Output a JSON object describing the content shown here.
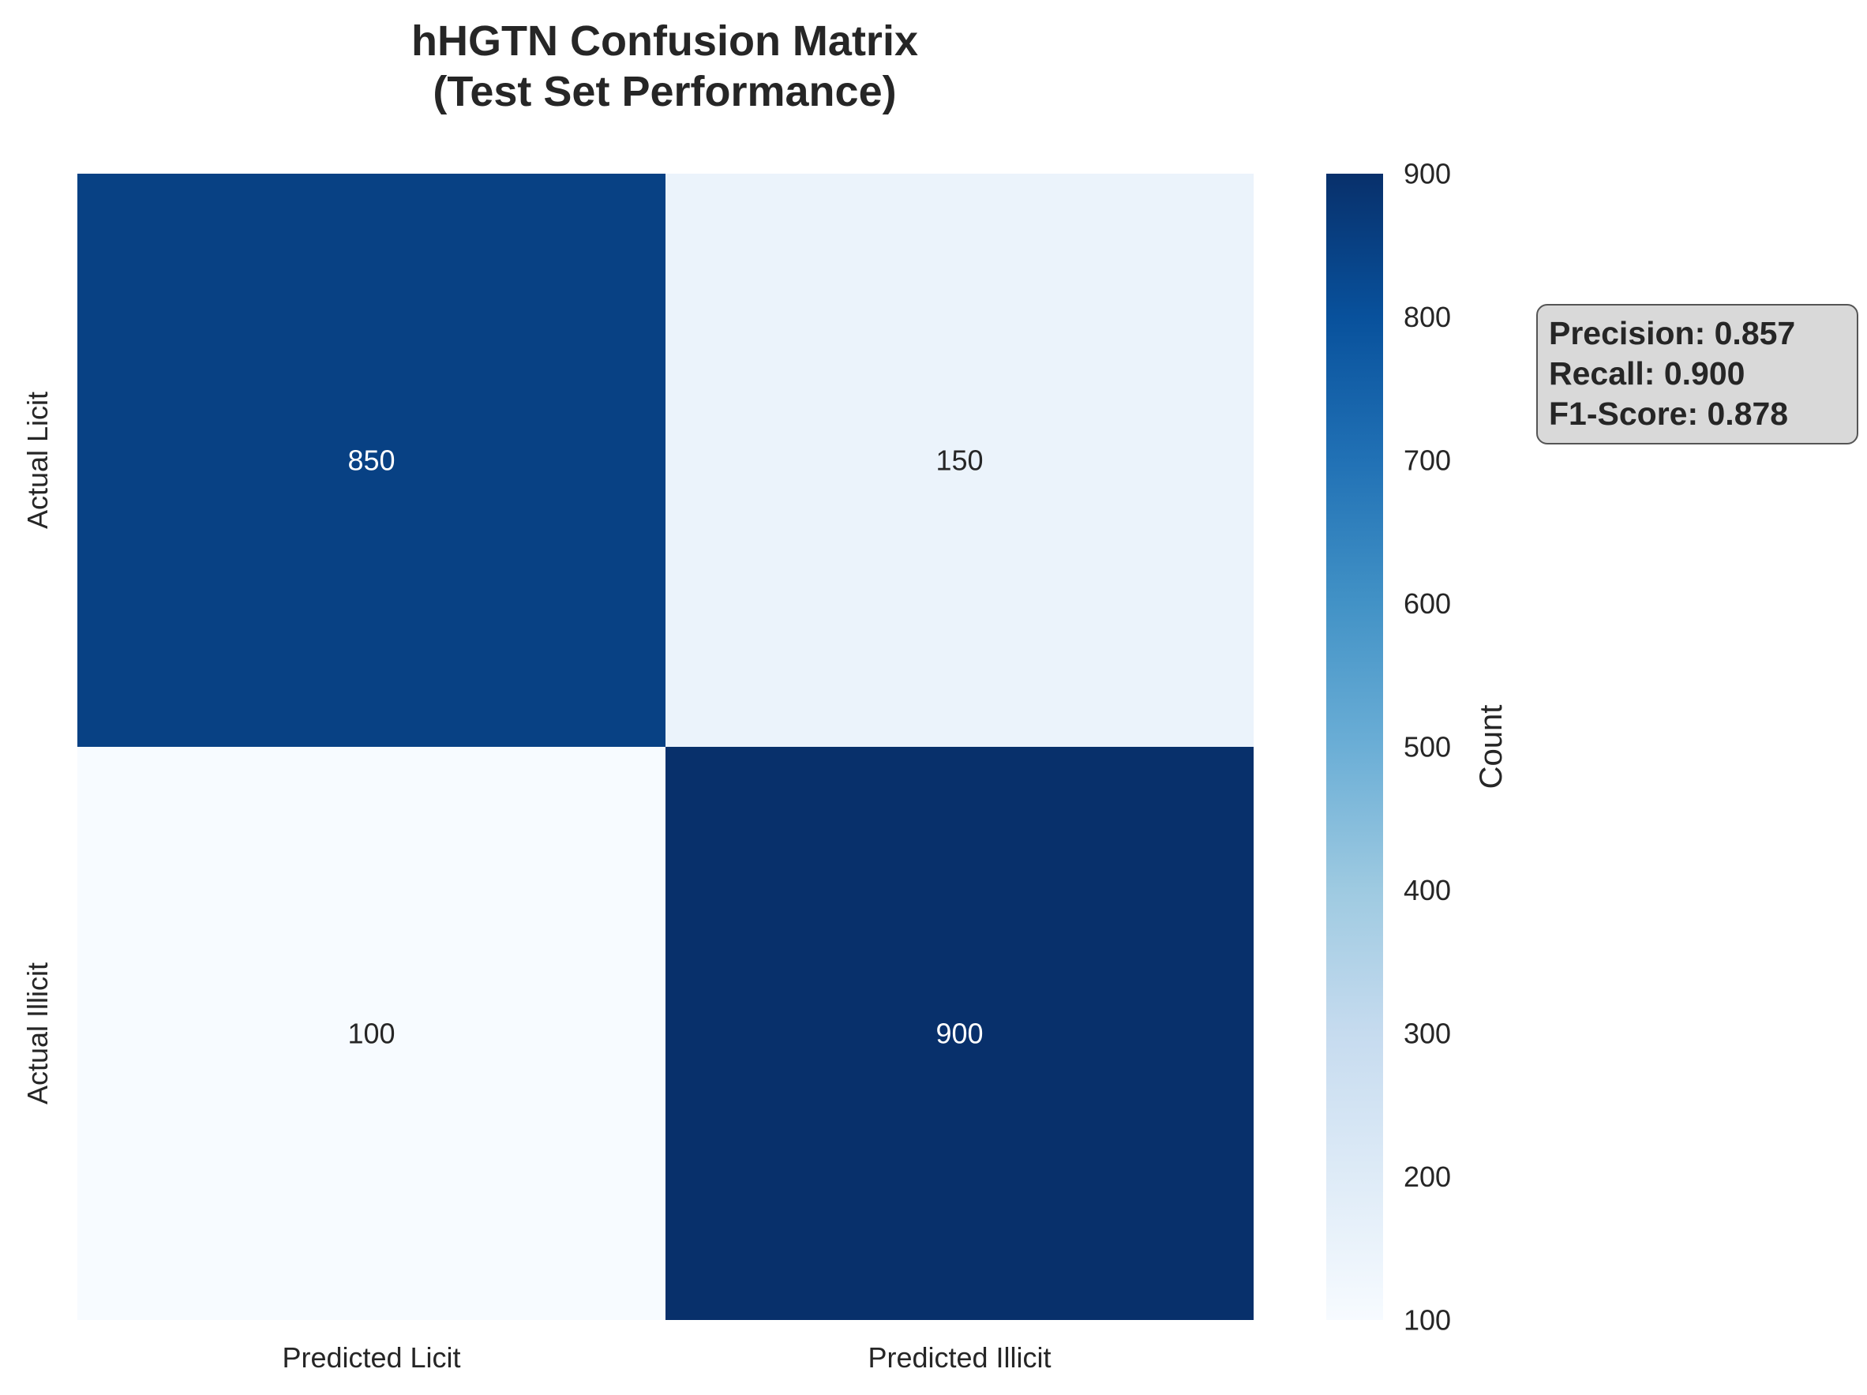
{
  "chart_data": {
    "type": "heatmap",
    "title": [
      "hHGTN Confusion Matrix",
      "(Test Set Performance)"
    ],
    "x_categories": [
      "Predicted Licit",
      "Predicted Illicit"
    ],
    "y_categories": [
      "Actual Licit",
      "Actual Illicit"
    ],
    "values": [
      [
        850,
        150
      ],
      [
        100,
        900
      ]
    ],
    "colorbar": {
      "label": "Count",
      "range": [
        100,
        900
      ],
      "ticks": [
        "100",
        "200",
        "300",
        "400",
        "500",
        "600",
        "700",
        "800",
        "900"
      ],
      "colormap": "Blues"
    },
    "grid": false
  },
  "metrics": {
    "precision": "Precision: 0.857",
    "recall": "Recall: 0.900",
    "f1": "F1-Score: 0.878"
  }
}
